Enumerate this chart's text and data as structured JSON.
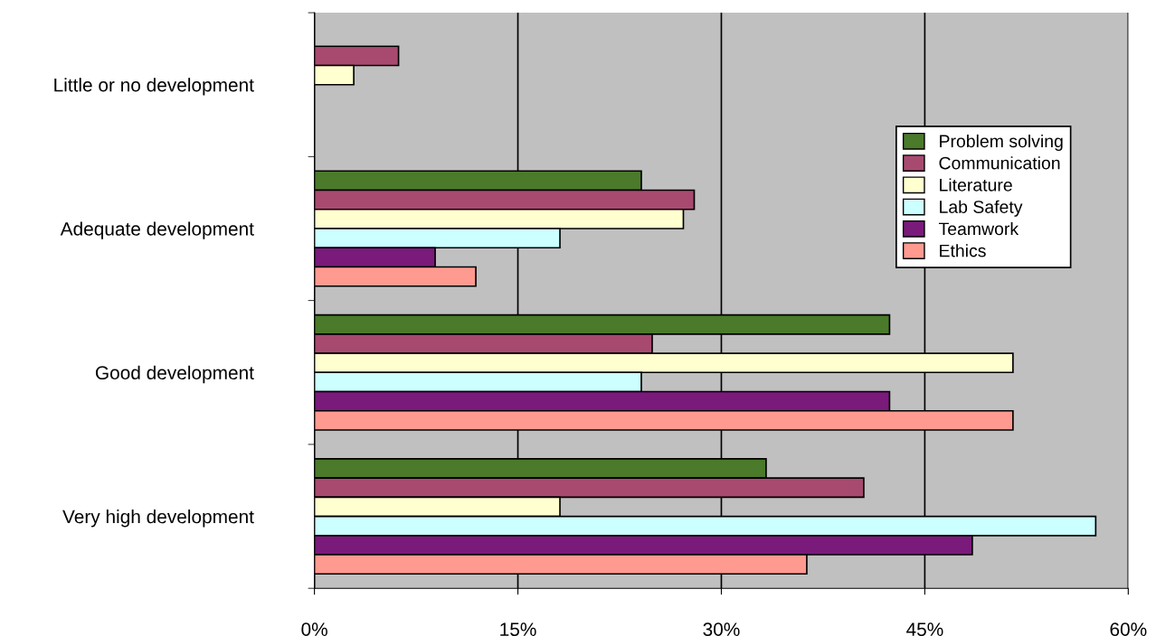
{
  "chart_data": {
    "type": "bar",
    "orientation": "horizontal",
    "categories": [
      "Little or no development",
      "Adequate development",
      "Good development",
      "Very high development"
    ],
    "series": [
      {
        "name": "Problem solving",
        "color": "#4a7a2a",
        "values": [
          0,
          24.1,
          42.4,
          33.3
        ]
      },
      {
        "name": "Communication",
        "color": "#a84a70",
        "values": [
          6.2,
          28.0,
          24.9,
          40.5
        ]
      },
      {
        "name": "Literature",
        "color": "#ffffd0",
        "values": [
          2.9,
          27.2,
          51.5,
          18.1
        ]
      },
      {
        "name": "Lab Safety",
        "color": "#ccffff",
        "values": [
          0,
          18.1,
          24.1,
          57.6
        ]
      },
      {
        "name": "Teamwork",
        "color": "#7a1a7a",
        "values": [
          0,
          8.9,
          42.4,
          48.5
        ]
      },
      {
        "name": "Ethics",
        "color": "#ff9a90",
        "values": [
          0,
          11.9,
          51.5,
          36.3
        ]
      }
    ],
    "xlim": [
      0,
      60
    ],
    "xticks": [
      {
        "value": 0,
        "label": "0%"
      },
      {
        "value": 15,
        "label": "15%"
      },
      {
        "value": 30,
        "label": "30%"
      },
      {
        "value": 45,
        "label": "45%"
      },
      {
        "value": 60,
        "label": "60%"
      }
    ],
    "grid": "x",
    "legend": "right"
  }
}
